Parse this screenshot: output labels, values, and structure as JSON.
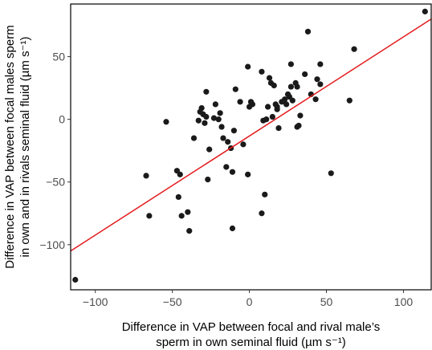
{
  "chart_data": {
    "type": "scatter",
    "xlabel_lines": [
      "Difference in VAP between focal and rival male’s",
      "sperm in own seminal fluid (µm s⁻¹)"
    ],
    "ylabel_lines": [
      "Difference in VAP between focal males sperm",
      "in own and in rivals seminal fluid (µm s⁻¹)"
    ],
    "xlim": [
      -116,
      118
    ],
    "ylim": [
      -136,
      92
    ],
    "x_ticks": [
      -100,
      -50,
      0,
      50,
      100
    ],
    "x_tick_labels": [
      "−100",
      "−50",
      "0",
      "50",
      "100"
    ],
    "y_ticks": [
      -100,
      -50,
      0,
      50
    ],
    "y_tick_labels": [
      "−100",
      "−50",
      "0",
      "50"
    ],
    "grid": false,
    "point_color": "#1a1a1a",
    "regression_line": {
      "color": "#e31a1c",
      "x": [
        -116,
        118
      ],
      "y": [
        -105,
        80
      ]
    },
    "points": [
      [
        -113,
        -128
      ],
      [
        114,
        86
      ],
      [
        -67,
        -45
      ],
      [
        -65,
        -77
      ],
      [
        -54,
        -2
      ],
      [
        -47,
        -41
      ],
      [
        -45,
        -44
      ],
      [
        -46,
        -62
      ],
      [
        -44,
        -77
      ],
      [
        -40,
        -74
      ],
      [
        -39,
        -89
      ],
      [
        -36,
        -15
      ],
      [
        -33,
        -1
      ],
      [
        -32,
        6
      ],
      [
        -31,
        9
      ],
      [
        -30,
        4
      ],
      [
        -29,
        -3
      ],
      [
        -28,
        22
      ],
      [
        -28,
        2
      ],
      [
        -27,
        -48
      ],
      [
        -26,
        -24
      ],
      [
        -23,
        1
      ],
      [
        -22,
        12
      ],
      [
        -20,
        0
      ],
      [
        -19,
        5
      ],
      [
        -18,
        -6
      ],
      [
        -17,
        -15
      ],
      [
        -15,
        -38
      ],
      [
        -14,
        -18
      ],
      [
        -12,
        -23
      ],
      [
        -11,
        -42
      ],
      [
        -11,
        -87
      ],
      [
        -10,
        -9
      ],
      [
        -9,
        24
      ],
      [
        -6,
        14
      ],
      [
        -4,
        -20
      ],
      [
        -1,
        42
      ],
      [
        -1,
        -44
      ],
      [
        0,
        10
      ],
      [
        1,
        14
      ],
      [
        2,
        12
      ],
      [
        8,
        38
      ],
      [
        8,
        -75
      ],
      [
        9,
        -1
      ],
      [
        10,
        -60
      ],
      [
        11,
        0
      ],
      [
        12,
        10
      ],
      [
        13,
        33
      ],
      [
        14,
        29
      ],
      [
        15,
        2
      ],
      [
        16,
        27
      ],
      [
        17,
        12
      ],
      [
        18,
        10
      ],
      [
        18,
        8
      ],
      [
        19,
        -7
      ],
      [
        21,
        14
      ],
      [
        23,
        16
      ],
      [
        24,
        12
      ],
      [
        25,
        20
      ],
      [
        26,
        18
      ],
      [
        27,
        44
      ],
      [
        27,
        26
      ],
      [
        28,
        15
      ],
      [
        30,
        29
      ],
      [
        31,
        26
      ],
      [
        31,
        -6
      ],
      [
        32,
        -5
      ],
      [
        33,
        3
      ],
      [
        36,
        36
      ],
      [
        38,
        70
      ],
      [
        40,
        20
      ],
      [
        43,
        16
      ],
      [
        44,
        32
      ],
      [
        46,
        28
      ],
      [
        46,
        44
      ],
      [
        53,
        -43
      ],
      [
        65,
        15
      ],
      [
        68,
        56
      ]
    ]
  }
}
